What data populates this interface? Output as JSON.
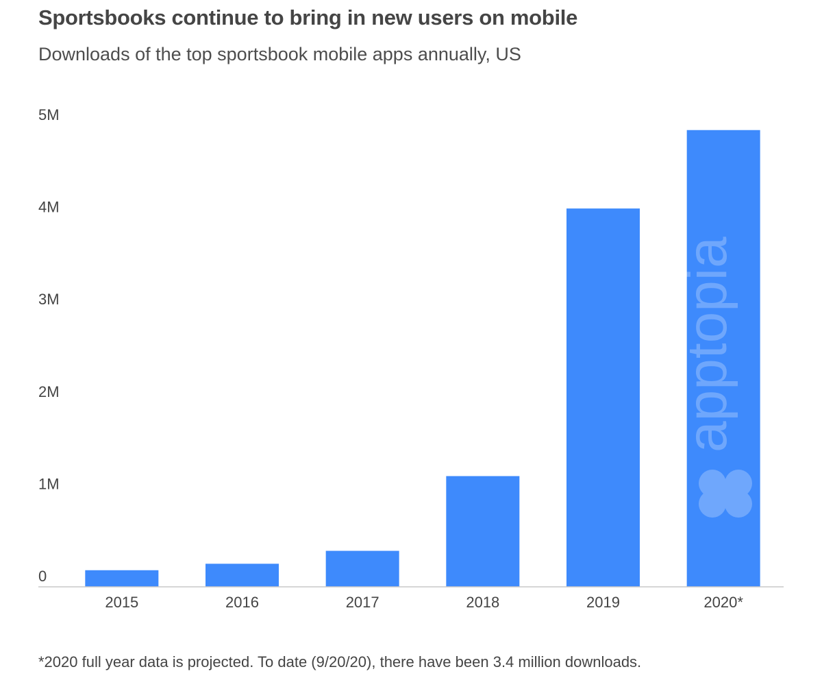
{
  "chart_data": {
    "type": "bar",
    "title": "Sportsbooks continue to bring in new users on mobile",
    "subtitle": "Downloads of the top sportsbook mobile apps annually, US",
    "footnote": "*2020 full year data is projected. To date (9/20/20), there have been 3.4 million downloads.",
    "categories": [
      "2015",
      "2016",
      "2017",
      "2018",
      "2019",
      "2020*"
    ],
    "values": [
      180000,
      250000,
      390000,
      1200000,
      4100000,
      4950000
    ],
    "ylim": [
      0,
      5000000
    ],
    "yticks": [
      0,
      1000000,
      2000000,
      3000000,
      4000000,
      5000000
    ],
    "ytick_labels": [
      "0",
      "1M",
      "2M",
      "3M",
      "4M",
      "5M"
    ],
    "xlabel": "",
    "ylabel": "",
    "grid": false,
    "bar_color": "#3e8afc",
    "watermark": "apptopia"
  }
}
